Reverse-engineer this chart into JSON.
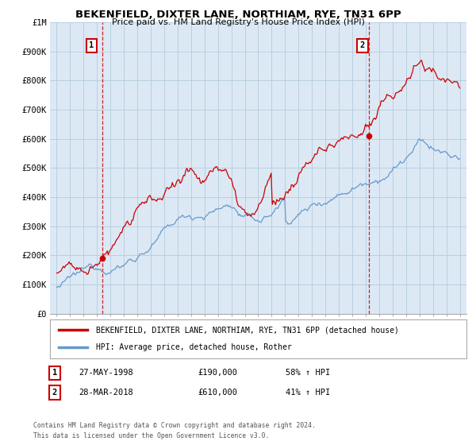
{
  "title": "BEKENFIELD, DIXTER LANE, NORTHIAM, RYE, TN31 6PP",
  "subtitle": "Price paid vs. HM Land Registry's House Price Index (HPI)",
  "legend_line1": "BEKENFIELD, DIXTER LANE, NORTHIAM, RYE, TN31 6PP (detached house)",
  "legend_line2": "HPI: Average price, detached house, Rother",
  "annotation1_label": "1",
  "annotation1_date": "27-MAY-1998",
  "annotation1_price": "£190,000",
  "annotation1_hpi": "58% ↑ HPI",
  "annotation2_label": "2",
  "annotation2_date": "28-MAR-2018",
  "annotation2_price": "£610,000",
  "annotation2_hpi": "41% ↑ HPI",
  "footnote": "Contains HM Land Registry data © Crown copyright and database right 2024.\nThis data is licensed under the Open Government Licence v3.0.",
  "point1_x": 1998.4,
  "point1_y": 190000,
  "point2_x": 2018.25,
  "point2_y": 610000,
  "red_color": "#cc0000",
  "blue_color": "#6699cc",
  "plot_bg_color": "#dce9f5",
  "fig_bg_color": "#ffffff",
  "grid_color": "#b8cfe0",
  "ylim": [
    0,
    1000000
  ],
  "xlim_start": 1994.5,
  "xlim_end": 2025.5
}
